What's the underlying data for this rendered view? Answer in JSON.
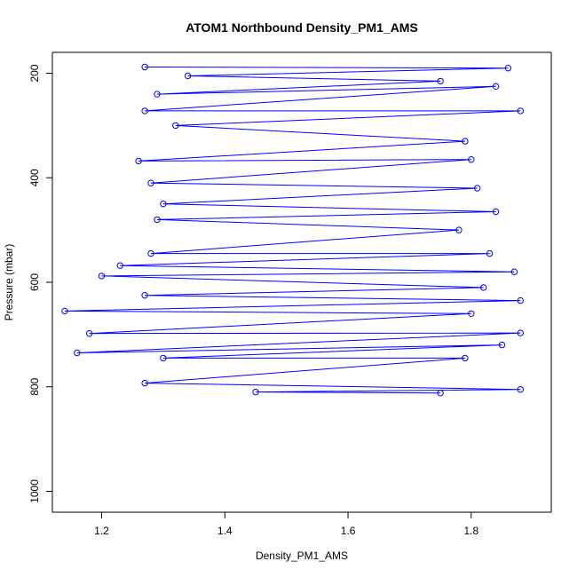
{
  "chart_data": {
    "type": "scatter",
    "title": "ATOM1 Northbound Density_PM1_AMS",
    "xlabel": "Density_PM1_AMS",
    "ylabel": "Pressure (mbar)",
    "xlim": [
      1.12,
      1.93
    ],
    "ylim": [
      1040,
      160
    ],
    "y_reversed": true,
    "x_ticks": [
      {
        "value": 1.2,
        "label": "1.2"
      },
      {
        "value": 1.4,
        "label": "1.4"
      },
      {
        "value": 1.6,
        "label": "1.6"
      },
      {
        "value": 1.8,
        "label": "1.8"
      }
    ],
    "y_ticks": [
      {
        "value": 200,
        "label": "200"
      },
      {
        "value": 400,
        "label": "400"
      },
      {
        "value": 600,
        "label": "600"
      },
      {
        "value": 800,
        "label": "800"
      },
      {
        "value": 1000,
        "label": "1000"
      }
    ],
    "series": [
      {
        "color": "#0000ff",
        "marker": "open-circle",
        "connected": true,
        "points": [
          {
            "x": 1.27,
            "y": 188
          },
          {
            "x": 1.86,
            "y": 190
          },
          {
            "x": 1.34,
            "y": 205
          },
          {
            "x": 1.75,
            "y": 215
          },
          {
            "x": 1.29,
            "y": 240
          },
          {
            "x": 1.84,
            "y": 225
          },
          {
            "x": 1.27,
            "y": 272
          },
          {
            "x": 1.88,
            "y": 272
          },
          {
            "x": 1.32,
            "y": 300
          },
          {
            "x": 1.79,
            "y": 330
          },
          {
            "x": 1.26,
            "y": 368
          },
          {
            "x": 1.8,
            "y": 365
          },
          {
            "x": 1.28,
            "y": 410
          },
          {
            "x": 1.81,
            "y": 420
          },
          {
            "x": 1.3,
            "y": 450
          },
          {
            "x": 1.84,
            "y": 465
          },
          {
            "x": 1.29,
            "y": 480
          },
          {
            "x": 1.78,
            "y": 500
          },
          {
            "x": 1.28,
            "y": 545
          },
          {
            "x": 1.83,
            "y": 545
          },
          {
            "x": 1.23,
            "y": 568
          },
          {
            "x": 1.87,
            "y": 580
          },
          {
            "x": 1.2,
            "y": 588
          },
          {
            "x": 1.82,
            "y": 610
          },
          {
            "x": 1.27,
            "y": 625
          },
          {
            "x": 1.88,
            "y": 635
          },
          {
            "x": 1.14,
            "y": 655
          },
          {
            "x": 1.8,
            "y": 660
          },
          {
            "x": 1.18,
            "y": 698
          },
          {
            "x": 1.88,
            "y": 697
          },
          {
            "x": 1.16,
            "y": 735
          },
          {
            "x": 1.85,
            "y": 720
          },
          {
            "x": 1.3,
            "y": 745
          },
          {
            "x": 1.79,
            "y": 745
          },
          {
            "x": 1.27,
            "y": 793
          },
          {
            "x": 1.88,
            "y": 805
          },
          {
            "x": 1.45,
            "y": 810
          },
          {
            "x": 1.75,
            "y": 812
          }
        ]
      }
    ],
    "grid": false,
    "legend": "none"
  }
}
